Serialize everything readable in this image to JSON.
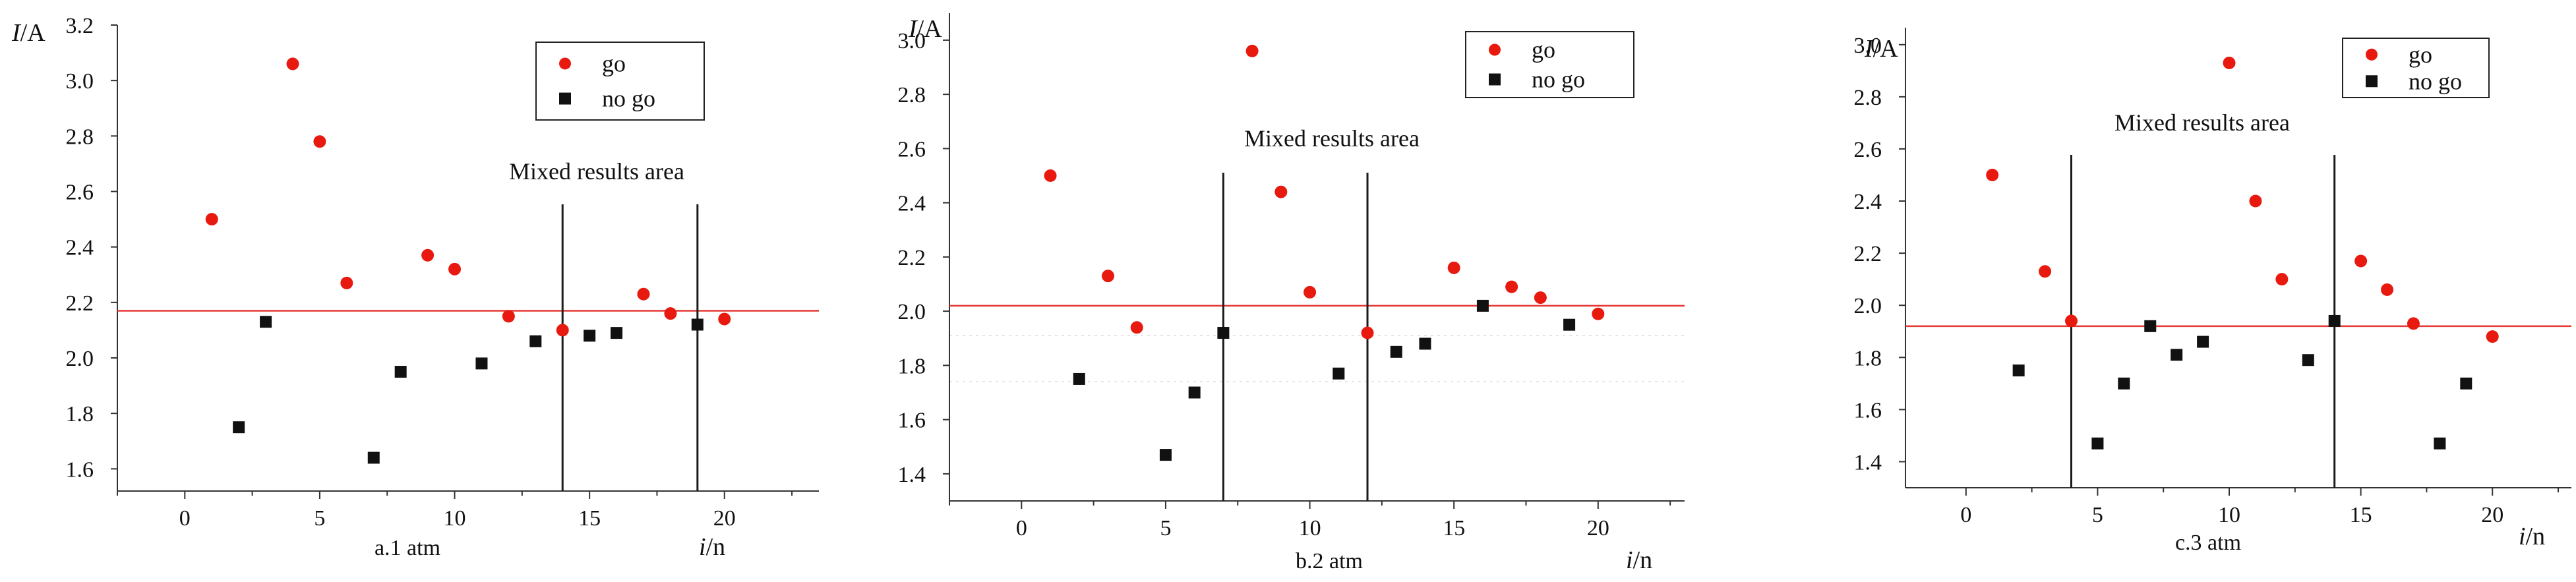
{
  "chart_data": [
    {
      "type": "scatter",
      "caption": "a.1 atm",
      "ylabel": "I/A",
      "xlabel": "i/n",
      "xlim": [
        -2.5,
        23.5
      ],
      "ylim": [
        1.52,
        3.2
      ],
      "xticks": [
        0,
        5,
        10,
        15,
        20
      ],
      "yticks": [
        1.6,
        1.8,
        2.0,
        2.2,
        2.4,
        2.6,
        2.8,
        3.0,
        3.2
      ],
      "ytick_labels": [
        "1.6",
        "1.8",
        "2.0",
        "2.2",
        "2.4",
        "2.6",
        "2.8",
        "3.0",
        "3.2"
      ],
      "threshold": 2.17,
      "region_bounds": [
        14,
        19
      ],
      "region_label": "Mixed results area",
      "legend": {
        "go": "go",
        "nogo": "no go",
        "position": "top-right"
      },
      "series": [
        {
          "name": "go",
          "color": "#e8190f",
          "marker": "circle",
          "points": [
            [
              1,
              2.5
            ],
            [
              4,
              3.06
            ],
            [
              5,
              2.78
            ],
            [
              6,
              2.27
            ],
            [
              9,
              2.37
            ],
            [
              10,
              2.32
            ],
            [
              12,
              2.15
            ],
            [
              14,
              2.1
            ],
            [
              17,
              2.23
            ],
            [
              18,
              2.16
            ],
            [
              20,
              2.14
            ]
          ]
        },
        {
          "name": "no go",
          "color": "#111111",
          "marker": "square",
          "points": [
            [
              2,
              1.75
            ],
            [
              3,
              2.13
            ],
            [
              7,
              1.64
            ],
            [
              8,
              1.95
            ],
            [
              11,
              1.98
            ],
            [
              13,
              2.06
            ],
            [
              15,
              2.08
            ],
            [
              16,
              2.09
            ],
            [
              19,
              2.12
            ]
          ]
        }
      ]
    },
    {
      "type": "scatter",
      "caption": "b.2 atm",
      "ylabel": "I/A",
      "xlabel": "i/n",
      "xlim": [
        -2.5,
        23
      ],
      "ylim": [
        1.3,
        3.08
      ],
      "xticks": [
        0,
        5,
        10,
        15,
        20
      ],
      "yticks": [
        1.4,
        1.6,
        1.8,
        2.0,
        2.2,
        2.4,
        2.6,
        2.8,
        3.0
      ],
      "ytick_labels": [
        "1.4",
        "1.6",
        "1.8",
        "2.0",
        "2.2",
        "2.4",
        "2.6",
        "2.8",
        "3.0"
      ],
      "threshold": 2.02,
      "region_bounds": [
        7,
        12
      ],
      "region_label": "Mixed results area",
      "legend": {
        "go": "go",
        "nogo": "no go",
        "position": "top-right"
      },
      "series": [
        {
          "name": "go",
          "color": "#e8190f",
          "marker": "circle",
          "points": [
            [
              1,
              2.5
            ],
            [
              3,
              2.13
            ],
            [
              4,
              1.94
            ],
            [
              8,
              2.96
            ],
            [
              9,
              2.44
            ],
            [
              10,
              2.07
            ],
            [
              12,
              1.92
            ],
            [
              15,
              2.16
            ],
            [
              17,
              2.09
            ],
            [
              18,
              2.05
            ],
            [
              20,
              1.99
            ]
          ]
        },
        {
          "name": "no go",
          "color": "#111111",
          "marker": "square",
          "points": [
            [
              2,
              1.75
            ],
            [
              5,
              1.47
            ],
            [
              6,
              1.7
            ],
            [
              7,
              1.92
            ],
            [
              11,
              1.77
            ],
            [
              13,
              1.85
            ],
            [
              14,
              1.88
            ],
            [
              16,
              2.02
            ],
            [
              19,
              1.95
            ]
          ]
        }
      ]
    },
    {
      "type": "scatter",
      "caption": "c.3 atm",
      "ylabel": "I/A",
      "xlabel": "i/n",
      "xlim": [
        -2.3,
        23
      ],
      "ylim": [
        1.3,
        3.05
      ],
      "xticks": [
        0,
        5,
        10,
        15,
        20
      ],
      "yticks": [
        1.4,
        1.6,
        1.8,
        2.0,
        2.2,
        2.4,
        2.6,
        2.8,
        3.0
      ],
      "ytick_labels": [
        "1.4",
        "1.6",
        "1.8",
        "2.0",
        "2.2",
        "2.4",
        "2.6",
        "2.8",
        "3.0"
      ],
      "threshold": 1.92,
      "region_bounds": [
        4,
        14
      ],
      "region_label": "Mixed results area",
      "legend": {
        "go": "go",
        "nogo": "no go",
        "position": "top-right"
      },
      "series": [
        {
          "name": "go",
          "color": "#e8190f",
          "marker": "circle",
          "points": [
            [
              1,
              2.5
            ],
            [
              3,
              2.13
            ],
            [
              4,
              1.94
            ],
            [
              10,
              2.93
            ],
            [
              11,
              2.4
            ],
            [
              12,
              2.1
            ],
            [
              15,
              2.17
            ],
            [
              16,
              2.06
            ],
            [
              17,
              1.93
            ],
            [
              20,
              1.88
            ]
          ]
        },
        {
          "name": "no go",
          "color": "#111111",
          "marker": "square",
          "points": [
            [
              2,
              1.75
            ],
            [
              5,
              1.47
            ],
            [
              6,
              1.7
            ],
            [
              7,
              1.92
            ],
            [
              8,
              1.81
            ],
            [
              9,
              1.86
            ],
            [
              13,
              1.79
            ],
            [
              14,
              1.94
            ],
            [
              18,
              1.47
            ],
            [
              19,
              1.7
            ]
          ]
        }
      ]
    }
  ]
}
